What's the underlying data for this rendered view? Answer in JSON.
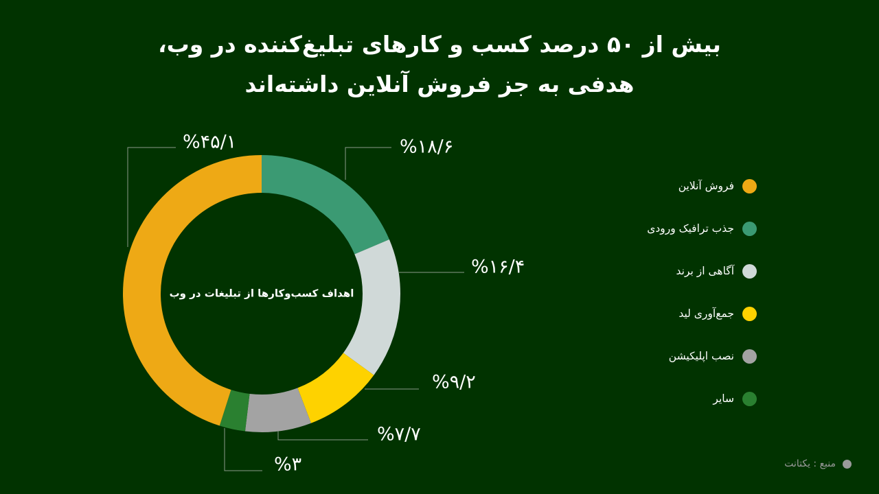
{
  "title_lines": [
    "بیش از ۵۰ درصد کسب و کارهای تبلیغ‌کننده در وب،",
    "هدفی به جز فروش آنلاین داشته‌اند"
  ],
  "chart_data": {
    "type": "pie",
    "center_label": "اهداف کسب‌وکارها از تبلیغات در وب",
    "slices": [
      {
        "label": "جذب ترافیک ورودی",
        "value": 18.6,
        "value_label": "%۱۸/۶",
        "color": "#3b9a73"
      },
      {
        "label": "آگاهی از برند",
        "value": 16.4,
        "value_label": "%۱۶/۴",
        "color": "#d0d9d8"
      },
      {
        "label": "جمع‌آوری لید",
        "value": 9.2,
        "value_label": "%۹/۲",
        "color": "#fed200"
      },
      {
        "label": "نصب اپلیکیشن",
        "value": 7.7,
        "value_label": "%۷/۷",
        "color": "#a3a3a3"
      },
      {
        "label": "سایر",
        "value": 3,
        "value_label": "%۳",
        "color": "#2a8030"
      },
      {
        "label": "فروش آنلاین",
        "value": 45.1,
        "value_label": "%۴۵/۱",
        "color": "#eea915"
      }
    ]
  },
  "legend": [
    {
      "label": "فروش آنلاین",
      "color": "#eea915"
    },
    {
      "label": "جذب ترافیک ورودی",
      "color": "#3b9a73"
    },
    {
      "label": "آگاهی از برند",
      "color": "#d0d9d8"
    },
    {
      "label": "جمع‌آوری لید",
      "color": "#fed200"
    },
    {
      "label": "نصب اپلیکیشن",
      "color": "#a3a3a3"
    },
    {
      "label": "سایر",
      "color": "#2a8030"
    }
  ],
  "source": "منبع : یکتانت"
}
